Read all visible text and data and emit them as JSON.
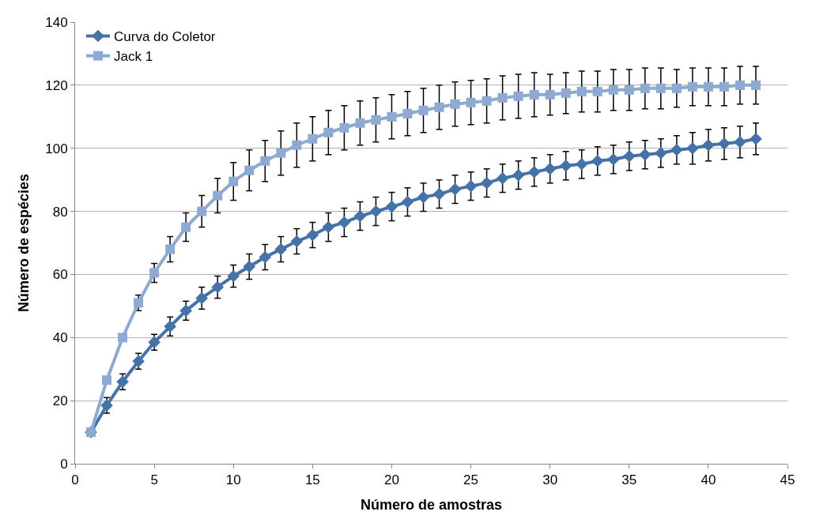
{
  "chart_data": {
    "type": "line",
    "xlabel": "Número de amostras",
    "ylabel": "Número de espécies",
    "x": [
      1,
      2,
      3,
      4,
      5,
      6,
      7,
      8,
      9,
      10,
      11,
      12,
      13,
      14,
      15,
      16,
      17,
      18,
      19,
      20,
      21,
      22,
      23,
      24,
      25,
      26,
      27,
      28,
      29,
      30,
      31,
      32,
      33,
      34,
      35,
      36,
      37,
      38,
      39,
      40,
      41,
      42,
      43
    ],
    "xlim": [
      0,
      45
    ],
    "xticks": [
      0,
      5,
      10,
      15,
      20,
      25,
      30,
      35,
      40,
      45
    ],
    "ylim": [
      0,
      140
    ],
    "yticks": [
      0,
      20,
      40,
      60,
      80,
      100,
      120,
      140
    ],
    "grid": "y",
    "legend": "top left",
    "line_style": "solid",
    "series": [
      {
        "name": "Curva do Coletor",
        "color": "#4572a7",
        "marker": "diamond",
        "values": [
          10,
          18.5,
          26,
          32.5,
          38.5,
          43.5,
          48.5,
          52.5,
          56,
          59.5,
          62.5,
          65.5,
          68,
          70.5,
          72.5,
          75,
          76.5,
          78.5,
          80,
          81.5,
          83,
          84.5,
          85.5,
          87,
          88,
          89,
          90.5,
          91.5,
          92.5,
          93.5,
          94.5,
          95,
          96,
          96.5,
          97.5,
          98,
          98.5,
          99.5,
          100,
          101,
          101.5,
          102,
          103
        ],
        "errors": [
          null,
          2.5,
          2.5,
          2.5,
          2.5,
          3,
          3,
          3.5,
          3.5,
          3.5,
          4,
          4,
          4,
          4,
          4,
          4.5,
          4.5,
          4.5,
          4.5,
          4.5,
          4.5,
          4.5,
          4.5,
          4.5,
          4.5,
          4.5,
          4.5,
          4.5,
          4.5,
          4.5,
          4.5,
          4.5,
          4.5,
          4.5,
          4.5,
          4.5,
          4.5,
          4.5,
          5,
          5,
          5,
          5,
          5
        ]
      },
      {
        "name": "Jack 1",
        "color": "#8eaad2",
        "marker": "square",
        "values": [
          10,
          26.5,
          40,
          51,
          60.5,
          68,
          75,
          80,
          85,
          89.5,
          93,
          96,
          98.5,
          101,
          103,
          105,
          106.5,
          108,
          109,
          110,
          111,
          112,
          113,
          114,
          114.5,
          115,
          116,
          116.5,
          117,
          117,
          117.5,
          118,
          118,
          118.5,
          118.5,
          119,
          119,
          119,
          119.5,
          119.5,
          119.5,
          120,
          120
        ],
        "errors": [
          null,
          null,
          null,
          2.5,
          3,
          4,
          4.5,
          5,
          5.5,
          6,
          6.5,
          6.5,
          7,
          7,
          7,
          7,
          7,
          7,
          7,
          7,
          7,
          7,
          7,
          7,
          7,
          7,
          7,
          7,
          7,
          6.5,
          6.5,
          6.5,
          6.5,
          6.5,
          6.5,
          6.5,
          6.5,
          6,
          6,
          6,
          6,
          6,
          6
        ]
      }
    ]
  }
}
